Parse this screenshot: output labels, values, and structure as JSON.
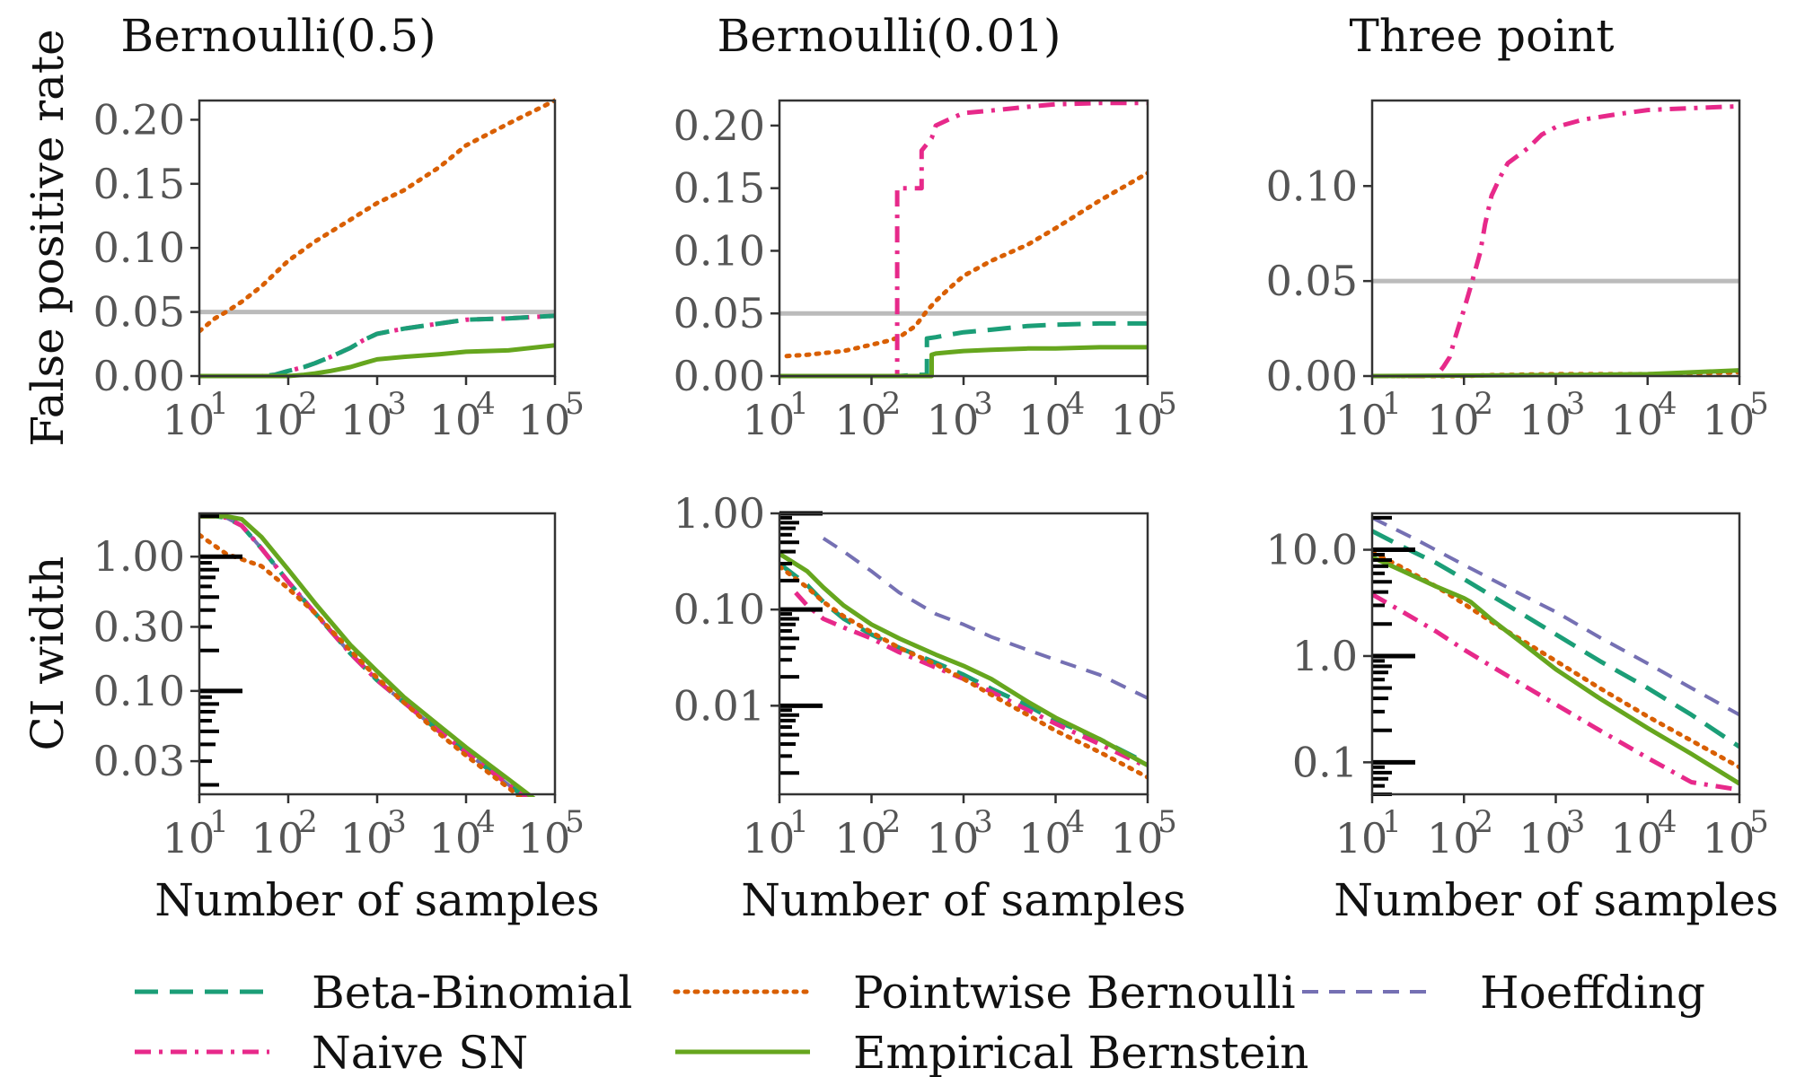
{
  "colors": {
    "Beta-Binomial": "#1b9e77",
    "Naive SN": "#e7298a",
    "Pointwise Bernoulli": "#d95f02",
    "Empirical Bernstein": "#66a61e",
    "Hoeffding": "#7570b3",
    "reference": "#bbbbbb"
  },
  "legend": [
    {
      "name": "Beta-Binomial",
      "dash": "dashed"
    },
    {
      "name": "Naive SN",
      "dash": "dashdot"
    },
    {
      "name": "Pointwise Bernoulli",
      "dash": "dotted"
    },
    {
      "name": "Empirical Bernstein",
      "dash": "solid"
    },
    {
      "name": "Hoeffding",
      "dash": "dashed-thin"
    }
  ],
  "chart_data": [
    {
      "type": "line",
      "title": "Bernoulli(0.5)",
      "xlabel": "",
      "ylabel": "False positive rate",
      "xscale": "log",
      "xlim": [
        10,
        100000
      ],
      "ylim": [
        0,
        0.215
      ],
      "yticks": [
        0.0,
        0.05,
        0.1,
        0.15,
        0.2
      ],
      "ytick_labels": [
        "0.00",
        "0.05",
        "0.10",
        "0.15",
        "0.20"
      ],
      "xtick_labels": [
        "10",
        "10",
        "10",
        "10",
        "10"
      ],
      "xtick_exponents": [
        "1",
        "2",
        "3",
        "4",
        "5"
      ],
      "reference_line": 0.05,
      "series": [
        {
          "name": "Pointwise Bernoulli",
          "x": [
            10,
            15,
            20,
            30,
            50,
            100,
            200,
            500,
            1000,
            2000,
            5000,
            10000,
            30000,
            100000
          ],
          "y": [
            0.035,
            0.045,
            0.05,
            0.058,
            0.07,
            0.09,
            0.105,
            0.122,
            0.135,
            0.145,
            0.163,
            0.18,
            0.197,
            0.215
          ]
        },
        {
          "name": "Naive SN",
          "x": [
            10,
            30,
            50,
            70,
            100,
            150,
            200,
            300,
            500,
            700,
            1000,
            2000,
            5000,
            10000,
            30000,
            100000
          ],
          "y": [
            0,
            0,
            0,
            0.001,
            0.004,
            0.007,
            0.01,
            0.015,
            0.022,
            0.028,
            0.033,
            0.037,
            0.041,
            0.044,
            0.045,
            0.047
          ]
        },
        {
          "name": "Beta-Binomial",
          "x": [
            10,
            30,
            50,
            70,
            100,
            150,
            200,
            300,
            500,
            700,
            1000,
            2000,
            5000,
            10000,
            30000,
            100000
          ],
          "y": [
            0,
            0,
            0,
            0.001,
            0.004,
            0.007,
            0.01,
            0.015,
            0.022,
            0.028,
            0.033,
            0.037,
            0.041,
            0.044,
            0.045,
            0.047
          ]
        },
        {
          "name": "Empirical Bernstein",
          "x": [
            10,
            100,
            150,
            200,
            300,
            500,
            700,
            1000,
            2000,
            5000,
            10000,
            30000,
            100000
          ],
          "y": [
            0,
            0,
            0.001,
            0.002,
            0.004,
            0.007,
            0.01,
            0.013,
            0.015,
            0.017,
            0.019,
            0.02,
            0.024
          ]
        }
      ]
    },
    {
      "type": "line",
      "title": "Bernoulli(0.01)",
      "xlabel": "",
      "ylabel": "",
      "xscale": "log",
      "xlim": [
        10,
        100000
      ],
      "ylim": [
        0,
        0.22
      ],
      "yticks": [
        0.0,
        0.05,
        0.1,
        0.15,
        0.2
      ],
      "ytick_labels": [
        "0.00",
        "0.05",
        "0.10",
        "0.15",
        "0.20"
      ],
      "xtick_labels": [
        "10",
        "10",
        "10",
        "10",
        "10"
      ],
      "xtick_exponents": [
        "1",
        "2",
        "3",
        "4",
        "5"
      ],
      "reference_line": 0.05,
      "series": [
        {
          "name": "Pointwise Bernoulli",
          "x": [
            12,
            20,
            50,
            100,
            150,
            200,
            300,
            400,
            500,
            700,
            1000,
            2000,
            5000,
            10000,
            30000,
            100000
          ],
          "y": [
            0.016,
            0.017,
            0.02,
            0.025,
            0.028,
            0.031,
            0.04,
            0.052,
            0.06,
            0.07,
            0.08,
            0.092,
            0.105,
            0.118,
            0.14,
            0.162
          ]
        },
        {
          "name": "Naive SN",
          "x": [
            10,
            100,
            190,
            190,
            200,
            250,
            300,
            350,
            350,
            450,
            500,
            700,
            1000,
            2000,
            5000,
            10000,
            30000,
            100000
          ],
          "y": [
            0,
            0,
            0,
            0.15,
            0.15,
            0.15,
            0.15,
            0.15,
            0.18,
            0.19,
            0.2,
            0.205,
            0.21,
            0.212,
            0.215,
            0.217,
            0.218,
            0.218
          ]
        },
        {
          "name": "Beta-Binomial",
          "x": [
            10,
            100,
            200,
            300,
            400,
            400,
            500,
            700,
            1000,
            2000,
            5000,
            10000,
            30000,
            100000
          ],
          "y": [
            0,
            0,
            0,
            0.001,
            0.001,
            0.03,
            0.031,
            0.033,
            0.035,
            0.037,
            0.04,
            0.041,
            0.042,
            0.042
          ]
        },
        {
          "name": "Empirical Bernstein",
          "x": [
            10,
            200,
            400,
            450,
            450,
            500,
            700,
            1000,
            2000,
            5000,
            10000,
            30000,
            100000
          ],
          "y": [
            0,
            0,
            0,
            0,
            0.017,
            0.018,
            0.019,
            0.02,
            0.021,
            0.022,
            0.022,
            0.023,
            0.023
          ]
        }
      ]
    },
    {
      "type": "line",
      "title": "Three point",
      "xlabel": "",
      "ylabel": "",
      "xscale": "log",
      "xlim": [
        10,
        100000
      ],
      "ylim": [
        0,
        0.145
      ],
      "yticks": [
        0.0,
        0.05,
        0.1
      ],
      "ytick_labels": [
        "0.00",
        "0.05",
        "0.10"
      ],
      "xtick_labels": [
        "10",
        "10",
        "10",
        "10",
        "10"
      ],
      "xtick_exponents": [
        "1",
        "2",
        "3",
        "4",
        "5"
      ],
      "reference_line": 0.05,
      "series": [
        {
          "name": "Naive SN",
          "x": [
            10,
            50,
            60,
            70,
            80,
            100,
            120,
            150,
            170,
            200,
            250,
            300,
            500,
            700,
            1000,
            2000,
            5000,
            10000,
            30000,
            100000
          ],
          "y": [
            0,
            0,
            0.005,
            0.01,
            0.02,
            0.035,
            0.048,
            0.065,
            0.08,
            0.095,
            0.105,
            0.112,
            0.12,
            0.127,
            0.131,
            0.135,
            0.138,
            0.14,
            0.141,
            0.142
          ]
        },
        {
          "name": "Pointwise Bernoulli",
          "x": [
            10,
            100,
            200,
            1000,
            10000,
            100000
          ],
          "y": [
            0,
            0,
            0.0005,
            0.001,
            0.001,
            0.002
          ]
        },
        {
          "name": "Empirical Bernstein",
          "x": [
            10,
            1000,
            10000,
            100000
          ],
          "y": [
            0,
            0.0005,
            0.001,
            0.003
          ]
        }
      ]
    },
    {
      "type": "line",
      "title": "",
      "xlabel": "Number of samples",
      "ylabel": "CI width",
      "xscale": "log",
      "yscale": "log",
      "xlim": [
        10,
        100000
      ],
      "ylim": [
        0.017,
        2.1
      ],
      "yticks": [
        0.03,
        0.1,
        0.3,
        1.0
      ],
      "ytick_labels": [
        "0.03",
        "0.10",
        "0.30",
        "1.00"
      ],
      "xtick_labels": [
        "10",
        "10",
        "10",
        "10",
        "10"
      ],
      "xtick_exponents": [
        "1",
        "2",
        "3",
        "4",
        "5"
      ],
      "series": [
        {
          "name": "Hoeffding",
          "x": [
            10,
            15,
            20,
            30,
            50,
            100,
            200,
            500,
            1000,
            2000,
            5000,
            10000,
            30000,
            100000
          ],
          "y": [
            2,
            2,
            1.95,
            1.7,
            1.15,
            0.65,
            0.38,
            0.19,
            0.12,
            0.082,
            0.05,
            0.035,
            0.02,
            0.011
          ]
        },
        {
          "name": "Beta-Binomial",
          "x": [
            10,
            15,
            20,
            30,
            50,
            100,
            200,
            500,
            1000,
            2000,
            5000,
            10000,
            30000,
            100000
          ],
          "y": [
            2,
            2,
            1.95,
            1.7,
            1.15,
            0.65,
            0.38,
            0.19,
            0.12,
            0.082,
            0.05,
            0.035,
            0.02,
            0.011
          ]
        },
        {
          "name": "Naive SN",
          "x": [
            10,
            15,
            20,
            30,
            50,
            100,
            200,
            500,
            1000,
            2000,
            5000,
            10000,
            30000,
            100000
          ],
          "y": [
            2,
            2,
            1.95,
            1.7,
            1.15,
            0.65,
            0.38,
            0.19,
            0.12,
            0.082,
            0.05,
            0.035,
            0.02,
            0.011
          ]
        },
        {
          "name": "Pointwise Bernoulli",
          "x": [
            10,
            20,
            50,
            100,
            200,
            500,
            1000,
            2000,
            5000,
            10000,
            30000,
            100000
          ],
          "y": [
            1.45,
            1.05,
            0.85,
            0.58,
            0.38,
            0.2,
            0.125,
            0.082,
            0.048,
            0.033,
            0.019,
            0.01
          ]
        },
        {
          "name": "Empirical Bernstein",
          "x": [
            10,
            20,
            30,
            50,
            100,
            200,
            500,
            1000,
            2000,
            5000,
            10000,
            30000,
            100000
          ],
          "y": [
            2,
            2,
            1.9,
            1.4,
            0.8,
            0.45,
            0.22,
            0.14,
            0.09,
            0.055,
            0.038,
            0.022,
            0.012
          ]
        }
      ]
    },
    {
      "type": "line",
      "title": "",
      "xlabel": "Number of samples",
      "ylabel": "",
      "xscale": "log",
      "yscale": "log",
      "xlim": [
        10,
        100000
      ],
      "ylim": [
        0.0012,
        1.0
      ],
      "yticks": [
        0.01,
        0.1,
        1.0
      ],
      "ytick_labels": [
        "0.01",
        "0.10",
        "1.00"
      ],
      "xtick_labels": [
        "10",
        "10",
        "10",
        "10",
        "10"
      ],
      "xtick_exponents": [
        "1",
        "2",
        "3",
        "4",
        "5"
      ],
      "series": [
        {
          "name": "Hoeffding",
          "x": [
            30,
            50,
            100,
            200,
            500,
            1000,
            2000,
            5000,
            10000,
            30000,
            100000
          ],
          "y": [
            0.55,
            0.4,
            0.25,
            0.15,
            0.09,
            0.07,
            0.052,
            0.038,
            0.03,
            0.021,
            0.012
          ]
        },
        {
          "name": "Beta-Binomial",
          "x": [
            10,
            20,
            30,
            50,
            100,
            200,
            500,
            1000,
            2000,
            5000,
            10000,
            30000,
            100000
          ],
          "y": [
            0.3,
            0.18,
            0.12,
            0.08,
            0.055,
            0.04,
            0.028,
            0.021,
            0.015,
            0.01,
            0.007,
            0.0045,
            0.0025
          ]
        },
        {
          "name": "Naive SN",
          "x": [
            15,
            20,
            30,
            50,
            100,
            200,
            500,
            1000,
            2000,
            5000,
            10000,
            30000,
            100000
          ],
          "y": [
            0.15,
            0.11,
            0.08,
            0.065,
            0.05,
            0.036,
            0.025,
            0.019,
            0.014,
            0.009,
            0.0065,
            0.004,
            0.0023
          ]
        },
        {
          "name": "Pointwise Bernoulli",
          "x": [
            10,
            20,
            30,
            50,
            100,
            200,
            500,
            1000,
            2000,
            5000,
            10000,
            30000,
            100000
          ],
          "y": [
            0.28,
            0.17,
            0.12,
            0.085,
            0.058,
            0.04,
            0.027,
            0.019,
            0.013,
            0.008,
            0.0055,
            0.0033,
            0.0018
          ]
        },
        {
          "name": "Empirical Bernstein",
          "x": [
            10,
            20,
            30,
            50,
            100,
            200,
            500,
            1000,
            2000,
            5000,
            10000,
            30000,
            100000
          ],
          "y": [
            0.38,
            0.25,
            0.17,
            0.11,
            0.07,
            0.05,
            0.034,
            0.026,
            0.019,
            0.011,
            0.0075,
            0.0045,
            0.0024
          ]
        }
      ]
    },
    {
      "type": "line",
      "title": "",
      "xlabel": "Number of samples",
      "ylabel": "",
      "xscale": "log",
      "yscale": "log",
      "xlim": [
        10,
        100000
      ],
      "ylim": [
        0.05,
        22
      ],
      "yticks": [
        0.1,
        1.0,
        10.0
      ],
      "ytick_labels": [
        "0.1",
        "1.0",
        "10.0"
      ],
      "xtick_labels": [
        "10",
        "10",
        "10",
        "10",
        "10"
      ],
      "xtick_exponents": [
        "1",
        "2",
        "3",
        "4",
        "5"
      ],
      "series": [
        {
          "name": "Hoeffding",
          "x": [
            10,
            30,
            100,
            300,
            1000,
            3000,
            10000,
            30000,
            100000
          ],
          "y": [
            20,
            12.5,
            7.2,
            4.4,
            2.6,
            1.5,
            0.85,
            0.5,
            0.28
          ]
        },
        {
          "name": "Beta-Binomial",
          "x": [
            10,
            20,
            50,
            100,
            200,
            500,
            1000,
            3000,
            10000,
            30000,
            100000
          ],
          "y": [
            15,
            11,
            7.5,
            5.3,
            3.7,
            2.3,
            1.6,
            0.9,
            0.5,
            0.28,
            0.14
          ]
        },
        {
          "name": "Pointwise Bernoulli",
          "x": [
            10,
            20,
            50,
            100,
            200,
            500,
            1000,
            3000,
            10000,
            30000,
            100000
          ],
          "y": [
            9.5,
            7,
            4.5,
            3.1,
            2.1,
            1.3,
            0.9,
            0.5,
            0.27,
            0.16,
            0.09
          ]
        },
        {
          "name": "Naive SN",
          "x": [
            10,
            20,
            50,
            100,
            200,
            500,
            1000,
            3000,
            10000,
            30000,
            100000
          ],
          "y": [
            3.8,
            2.7,
            1.7,
            1.15,
            0.8,
            0.5,
            0.35,
            0.2,
            0.11,
            0.065,
            0.055
          ]
        },
        {
          "name": "Empirical Bernstein",
          "x": [
            10,
            20,
            50,
            100,
            120,
            200,
            500,
            1000,
            3000,
            10000,
            30000,
            100000
          ],
          "y": [
            8.5,
            6.5,
            4.5,
            3.5,
            3.2,
            2.2,
            1.2,
            0.75,
            0.4,
            0.21,
            0.12,
            0.063
          ]
        }
      ]
    }
  ]
}
